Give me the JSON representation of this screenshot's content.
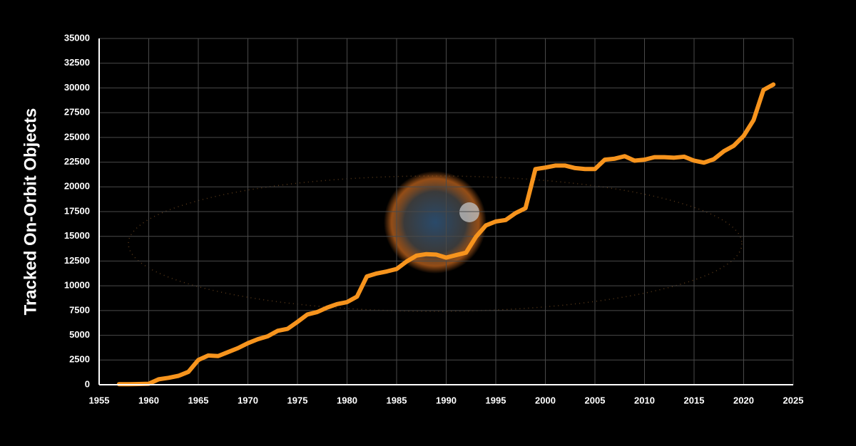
{
  "chart_data": {
    "type": "line",
    "ylabel": "Tracked On-Orbit Objects",
    "x": [
      1957,
      1958,
      1959,
      1960,
      1961,
      1962,
      1963,
      1964,
      1965,
      1966,
      1967,
      1968,
      1969,
      1970,
      1971,
      1972,
      1973,
      1974,
      1975,
      1976,
      1977,
      1978,
      1979,
      1980,
      1981,
      1982,
      1983,
      1984,
      1985,
      1986,
      1987,
      1988,
      1989,
      1990,
      1991,
      1992,
      1993,
      1994,
      1995,
      1996,
      1997,
      1998,
      1999,
      2000,
      2001,
      2002,
      2003,
      2004,
      2005,
      2006,
      2007,
      2008,
      2009,
      2010,
      2011,
      2012,
      2013,
      2014,
      2015,
      2016,
      2017,
      2018,
      2019,
      2020,
      2021,
      2022,
      2023
    ],
    "values": [
      50,
      50,
      70,
      100,
      550,
      700,
      900,
      1300,
      2500,
      2950,
      2900,
      3300,
      3700,
      4200,
      4600,
      4900,
      5450,
      5650,
      6350,
      7100,
      7350,
      7800,
      8150,
      8350,
      8900,
      10950,
      11250,
      11450,
      11700,
      12450,
      13050,
      13200,
      13150,
      12850,
      13100,
      13350,
      14950,
      16100,
      16500,
      16650,
      17350,
      17850,
      21800,
      21950,
      22150,
      22150,
      21900,
      21800,
      21800,
      22750,
      22850,
      23100,
      22650,
      22750,
      23000,
      23000,
      22950,
      23050,
      22650,
      22450,
      22800,
      23600,
      24150,
      25150,
      26750,
      29800,
      30350
    ],
    "color": "#f7941d",
    "xlim": [
      1955,
      2025
    ],
    "xticks": [
      1955,
      1960,
      1965,
      1970,
      1975,
      1980,
      1985,
      1990,
      1995,
      2000,
      2005,
      2010,
      2015,
      2020,
      2025
    ],
    "ylim": [
      0,
      35000
    ],
    "yticks": [
      0,
      2500,
      5000,
      7500,
      10000,
      12500,
      15000,
      17500,
      20000,
      22500,
      25000,
      27500,
      30000,
      32500,
      35000
    ],
    "grid": true
  }
}
